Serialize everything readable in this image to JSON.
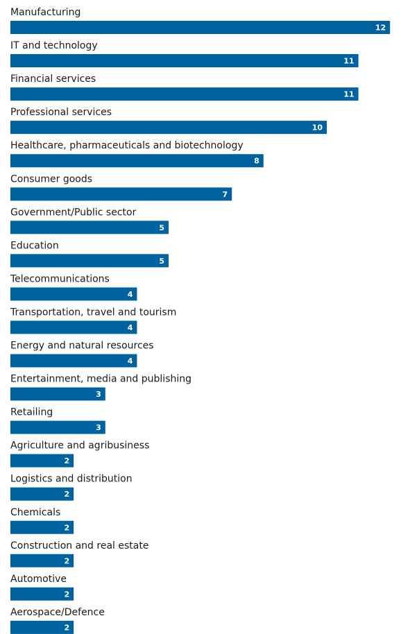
{
  "colors": {
    "bar": "#0062a0",
    "text": "#1a1a1a",
    "value_text": "#ffffff"
  },
  "chart_data": {
    "type": "bar",
    "orientation": "horizontal",
    "categories": [
      "Manufacturing",
      "IT and technology",
      "Financial services",
      "Professional services",
      "Healthcare, pharmaceuticals and biotechnology",
      "Consumer goods",
      "Government/Public sector",
      "Education",
      "Telecommunications",
      "Transportation, travel and tourism",
      "Energy and natural resources",
      "Entertainment, media and publishing",
      "Retailing",
      "Agriculture and agribusiness",
      "Logistics and distribution",
      "Chemicals",
      "Construction and real estate",
      "Automotive",
      "Aerospace/Defence"
    ],
    "values": [
      12,
      11,
      11,
      10,
      8,
      7,
      5,
      5,
      4,
      4,
      4,
      3,
      3,
      2,
      2,
      2,
      2,
      2,
      2
    ],
    "xlim": [
      0,
      12
    ],
    "grid": false,
    "data_labels": "inside-end"
  }
}
